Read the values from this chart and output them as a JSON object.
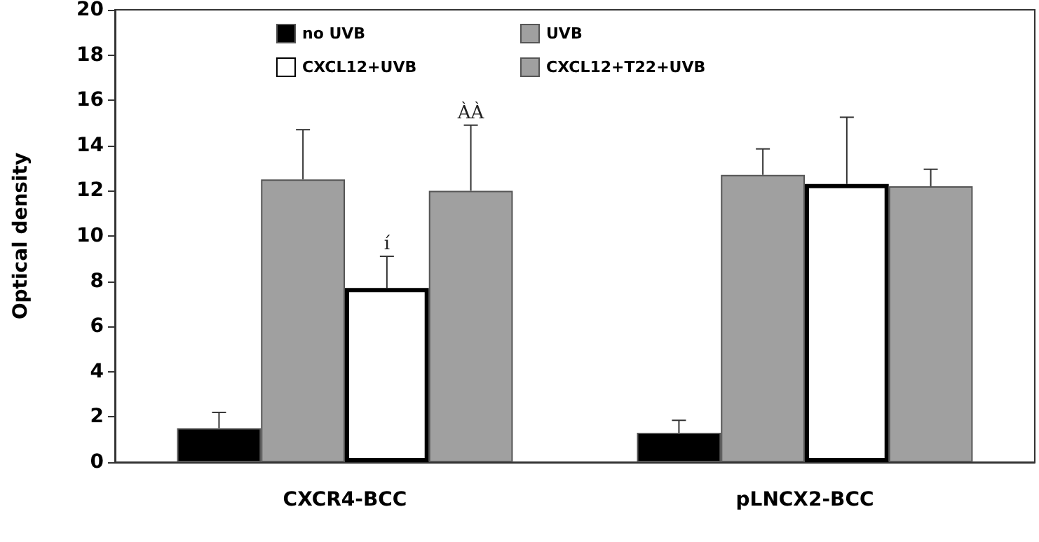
{
  "chart_data": {
    "type": "bar",
    "ylabel": "Optical density",
    "categories": [
      "CXCR4-BCC",
      "pLNCX2-BCC"
    ],
    "series": [
      {
        "name": "no UVB",
        "color": "#000000",
        "values": [
          1.5,
          1.3
        ],
        "errors": [
          [
            1.5,
            2.2
          ],
          [
            1.3,
            1.85
          ]
        ]
      },
      {
        "name": "UVB",
        "color": "#a0a0a0",
        "values": [
          12.5,
          12.7
        ],
        "errors": [
          [
            12.5,
            14.7
          ],
          [
            12.7,
            13.85
          ]
        ]
      },
      {
        "name": "CXCL12+UVB",
        "color": "#ffffff",
        "values": [
          7.7,
          12.3
        ],
        "errors": [
          [
            7.7,
            9.1
          ],
          [
            12.3,
            15.25
          ]
        ]
      },
      {
        "name": "CXCL12+T22+UVB",
        "color": "#a0a0a0",
        "values": [
          12.0,
          12.2
        ],
        "errors": [
          [
            12.0,
            14.9
          ],
          [
            12.2,
            12.95
          ]
        ]
      }
    ],
    "annotations": [
      "í",
      "ÀÀ"
    ],
    "ylim": [
      0,
      20
    ],
    "yticks": [
      0,
      2,
      4,
      6,
      8,
      10,
      12,
      14,
      16,
      18,
      20
    ],
    "grid": false,
    "legend": "top"
  }
}
